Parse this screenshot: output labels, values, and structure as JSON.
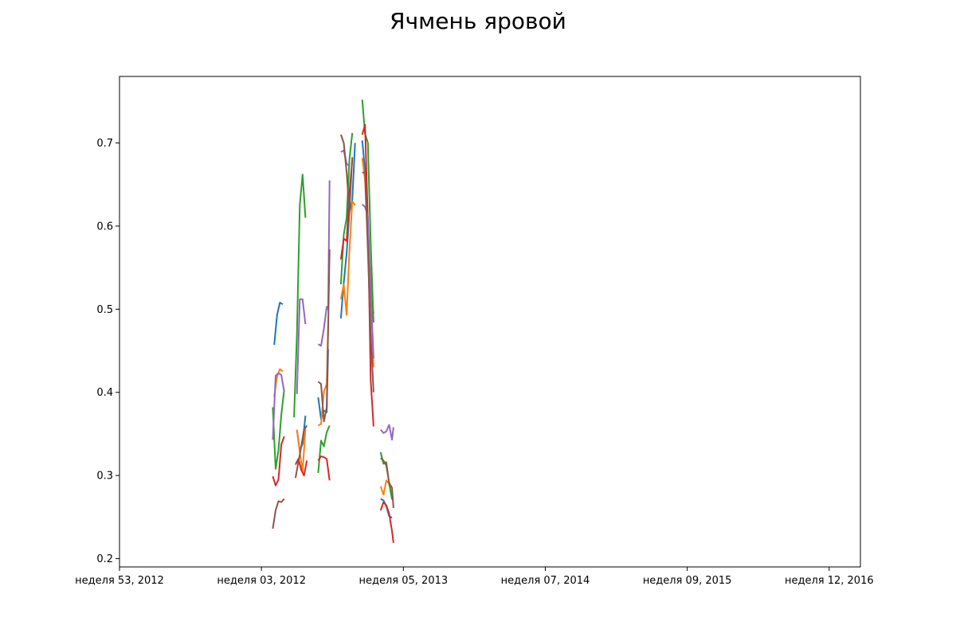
{
  "chart_data": {
    "type": "line",
    "title": "Ячмень яровой",
    "xlabel": "",
    "ylabel": "",
    "ylim": [
      0.19,
      0.78
    ],
    "yticks": [
      0.2,
      0.3,
      0.4,
      0.5,
      0.6,
      0.7
    ],
    "ytick_labels": [
      "0.2",
      "0.3",
      "0.4",
      "0.5",
      "0.6",
      "0.7"
    ],
    "xlim": [
      -0.0,
      5.22
    ],
    "xticks": [
      0,
      1,
      2,
      3,
      4,
      5
    ],
    "xtick_labels": [
      "неделя 53, 2012",
      "неделя 03, 2012",
      "неделя 05, 2013",
      "неделя 07, 2014",
      "неделя 09, 2015",
      "неделя 12, 2016"
    ],
    "grid": false,
    "legend": "none",
    "series": [
      {
        "color": "#1f77b4",
        "segments": [
          [
            [
              1.09,
              0.457
            ],
            [
              1.11,
              0.493
            ],
            [
              1.13,
              0.508
            ],
            [
              1.15,
              0.506
            ]
          ],
          [
            [
              1.25,
              0.355
            ],
            [
              1.27,
              0.33
            ],
            [
              1.29,
              0.338
            ],
            [
              1.31,
              0.372
            ]
          ],
          [
            [
              1.4,
              0.394
            ],
            [
              1.42,
              0.368
            ],
            [
              1.44,
              0.378
            ],
            [
              1.46,
              0.376
            ],
            [
              1.47,
              0.452
            ]
          ],
          [
            [
              1.56,
              0.489
            ],
            [
              1.58,
              0.532
            ],
            [
              1.6,
              0.567
            ],
            [
              1.62,
              0.617
            ],
            [
              1.64,
              0.631
            ],
            [
              1.66,
              0.7
            ]
          ],
          [
            [
              1.71,
              0.703
            ],
            [
              1.73,
              0.667
            ],
            [
              1.75,
              0.585
            ],
            [
              1.77,
              0.52
            ],
            [
              1.79,
              0.495
            ]
          ],
          [
            [
              1.84,
              0.272
            ],
            [
              1.86,
              0.27
            ],
            [
              1.88,
              0.263
            ],
            [
              1.9,
              0.251
            ],
            [
              1.92,
              0.249
            ]
          ]
        ]
      },
      {
        "color": "#ff7f0e",
        "segments": [
          [
            [
              1.09,
              0.395
            ],
            [
              1.11,
              0.419
            ],
            [
              1.13,
              0.428
            ],
            [
              1.15,
              0.425
            ]
          ],
          [
            [
              1.25,
              0.355
            ],
            [
              1.27,
              0.328
            ],
            [
              1.29,
              0.305
            ],
            [
              1.31,
              0.356
            ]
          ],
          [
            [
              1.4,
              0.36
            ],
            [
              1.42,
              0.362
            ],
            [
              1.44,
              0.401
            ],
            [
              1.46,
              0.41
            ],
            [
              1.47,
              0.48
            ]
          ],
          [
            [
              1.56,
              0.512
            ],
            [
              1.58,
              0.53
            ],
            [
              1.6,
              0.493
            ],
            [
              1.62,
              0.57
            ],
            [
              1.64,
              0.63
            ],
            [
              1.66,
              0.625
            ]
          ],
          [
            [
              1.71,
              0.682
            ],
            [
              1.73,
              0.655
            ],
            [
              1.75,
              0.58
            ],
            [
              1.77,
              0.54
            ],
            [
              1.79,
              0.43
            ]
          ],
          [
            [
              1.84,
              0.287
            ],
            [
              1.86,
              0.277
            ],
            [
              1.88,
              0.294
            ],
            [
              1.9,
              0.29
            ],
            [
              1.92,
              0.275
            ]
          ]
        ]
      },
      {
        "color": "#2ca02c",
        "segments": [
          [
            [
              1.08,
              0.382
            ],
            [
              1.1,
              0.308
            ],
            [
              1.12,
              0.33
            ],
            [
              1.14,
              0.373
            ],
            [
              1.16,
              0.403
            ]
          ],
          [
            [
              1.23,
              0.37
            ],
            [
              1.25,
              0.47
            ],
            [
              1.27,
              0.625
            ],
            [
              1.29,
              0.662
            ],
            [
              1.31,
              0.61
            ]
          ],
          [
            [
              1.4,
              0.303
            ],
            [
              1.42,
              0.342
            ],
            [
              1.44,
              0.335
            ],
            [
              1.46,
              0.352
            ],
            [
              1.48,
              0.36
            ]
          ],
          [
            [
              1.56,
              0.53
            ],
            [
              1.58,
              0.59
            ],
            [
              1.6,
              0.61
            ],
            [
              1.62,
              0.68
            ],
            [
              1.64,
              0.712
            ]
          ],
          [
            [
              1.71,
              0.752
            ],
            [
              1.73,
              0.711
            ],
            [
              1.75,
              0.7
            ],
            [
              1.77,
              0.58
            ],
            [
              1.79,
              0.484
            ]
          ],
          [
            [
              1.84,
              0.328
            ],
            [
              1.86,
              0.314
            ],
            [
              1.88,
              0.316
            ],
            [
              1.9,
              0.29
            ],
            [
              1.92,
              0.271
            ]
          ]
        ]
      },
      {
        "color": "#d62728",
        "segments": [
          [
            [
              1.08,
              0.299
            ],
            [
              1.1,
              0.288
            ],
            [
              1.12,
              0.295
            ],
            [
              1.14,
              0.337
            ],
            [
              1.16,
              0.347
            ]
          ],
          [
            [
              1.24,
              0.313
            ],
            [
              1.26,
              0.32
            ],
            [
              1.28,
              0.307
            ],
            [
              1.3,
              0.3
            ],
            [
              1.32,
              0.318
            ]
          ],
          [
            [
              1.4,
              0.318
            ],
            [
              1.42,
              0.323
            ],
            [
              1.44,
              0.322
            ],
            [
              1.46,
              0.32
            ],
            [
              1.48,
              0.294
            ]
          ],
          [
            [
              1.56,
              0.56
            ],
            [
              1.58,
              0.585
            ],
            [
              1.6,
              0.582
            ],
            [
              1.62,
              0.64
            ],
            [
              1.64,
              0.68
            ]
          ],
          [
            [
              1.71,
              0.71
            ],
            [
              1.73,
              0.722
            ],
            [
              1.75,
              0.605
            ],
            [
              1.77,
              0.415
            ],
            [
              1.79,
              0.359
            ]
          ],
          [
            [
              1.84,
              0.258
            ],
            [
              1.86,
              0.268
            ],
            [
              1.88,
              0.264
            ],
            [
              1.9,
              0.254
            ],
            [
              1.92,
              0.233
            ],
            [
              1.93,
              0.219
            ]
          ]
        ]
      },
      {
        "color": "#9467bd",
        "segments": [
          [
            [
              1.08,
              0.343
            ],
            [
              1.1,
              0.42
            ],
            [
              1.12,
              0.423
            ],
            [
              1.14,
              0.421
            ],
            [
              1.16,
              0.401
            ]
          ],
          [
            [
              1.25,
              0.398
            ],
            [
              1.27,
              0.512
            ],
            [
              1.29,
              0.512
            ],
            [
              1.31,
              0.482
            ]
          ],
          [
            [
              1.4,
              0.458
            ],
            [
              1.42,
              0.456
            ],
            [
              1.44,
              0.477
            ],
            [
              1.46,
              0.503
            ],
            [
              1.47,
              0.5
            ],
            [
              1.48,
              0.655
            ]
          ],
          [
            [
              1.56,
              0.689
            ],
            [
              1.58,
              0.691
            ],
            [
              1.6,
              0.675
            ],
            [
              1.62,
              0.672
            ]
          ],
          [
            [
              1.71,
              0.626
            ],
            [
              1.73,
              0.623
            ],
            [
              1.75,
              0.612
            ],
            [
              1.77,
              0.52
            ],
            [
              1.79,
              0.441
            ]
          ],
          [
            [
              1.84,
              0.355
            ],
            [
              1.86,
              0.351
            ],
            [
              1.88,
              0.353
            ],
            [
              1.9,
              0.361
            ],
            [
              1.92,
              0.343
            ],
            [
              1.93,
              0.358
            ]
          ]
        ]
      },
      {
        "color": "#8c564b",
        "segments": [
          [
            [
              1.08,
              0.236
            ],
            [
              1.1,
              0.258
            ],
            [
              1.12,
              0.269
            ],
            [
              1.14,
              0.268
            ],
            [
              1.16,
              0.272
            ]
          ],
          [
            [
              1.24,
              0.297
            ],
            [
              1.26,
              0.316
            ],
            [
              1.28,
              0.334
            ],
            [
              1.3,
              0.355
            ],
            [
              1.32,
              0.36
            ]
          ],
          [
            [
              1.4,
              0.413
            ],
            [
              1.42,
              0.41
            ],
            [
              1.44,
              0.365
            ],
            [
              1.46,
              0.382
            ],
            [
              1.48,
              0.572
            ]
          ],
          [
            [
              1.56,
              0.71
            ],
            [
              1.58,
              0.7
            ],
            [
              1.6,
              0.665
            ],
            [
              1.62,
              0.617
            ],
            [
              1.64,
              0.683
            ]
          ],
          [
            [
              1.71,
              0.664
            ],
            [
              1.73,
              0.665
            ],
            [
              1.75,
              0.57
            ],
            [
              1.77,
              0.47
            ],
            [
              1.79,
              0.4
            ]
          ],
          [
            [
              1.84,
              0.321
            ],
            [
              1.86,
              0.318
            ],
            [
              1.88,
              0.312
            ],
            [
              1.9,
              0.291
            ],
            [
              1.92,
              0.285
            ],
            [
              1.93,
              0.261
            ]
          ]
        ]
      }
    ]
  }
}
